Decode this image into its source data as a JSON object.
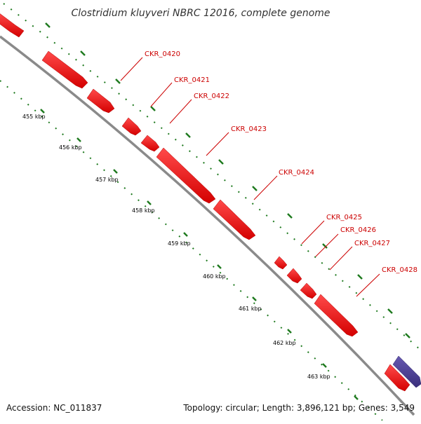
{
  "title": "Clostridium kluyveri NBRC 12016, complete genome",
  "footer": {
    "accession": "Accession: NC_011837",
    "summary": "Topology: circular; Length: 3,896,121 bp; Genes: 3,549"
  },
  "colors": {
    "forward_gene": "#ff0000",
    "reverse_gene": "#4b3f93",
    "backbone": "#909090",
    "ruler_dots": "#1f7a1f",
    "label_line": "#cc0000"
  },
  "genes": [
    {
      "label": "CKR_0420"
    },
    {
      "label": "CKR_0421"
    },
    {
      "label": "CKR_0422"
    },
    {
      "label": "CKR_0423"
    },
    {
      "label": "CKR_0424"
    },
    {
      "label": "CKR_0425"
    },
    {
      "label": "CKR_0426"
    },
    {
      "label": "CKR_0427"
    },
    {
      "label": "CKR_0428"
    }
  ],
  "ruler": [
    {
      "label": "455 kbp"
    },
    {
      "label": "456 kbp"
    },
    {
      "label": "457 kbp"
    },
    {
      "label": "458 kbp"
    },
    {
      "label": "459 kbp"
    },
    {
      "label": "460 kbp"
    },
    {
      "label": "461 kbp"
    },
    {
      "label": "462 kbp"
    },
    {
      "label": "463 kbp"
    }
  ]
}
